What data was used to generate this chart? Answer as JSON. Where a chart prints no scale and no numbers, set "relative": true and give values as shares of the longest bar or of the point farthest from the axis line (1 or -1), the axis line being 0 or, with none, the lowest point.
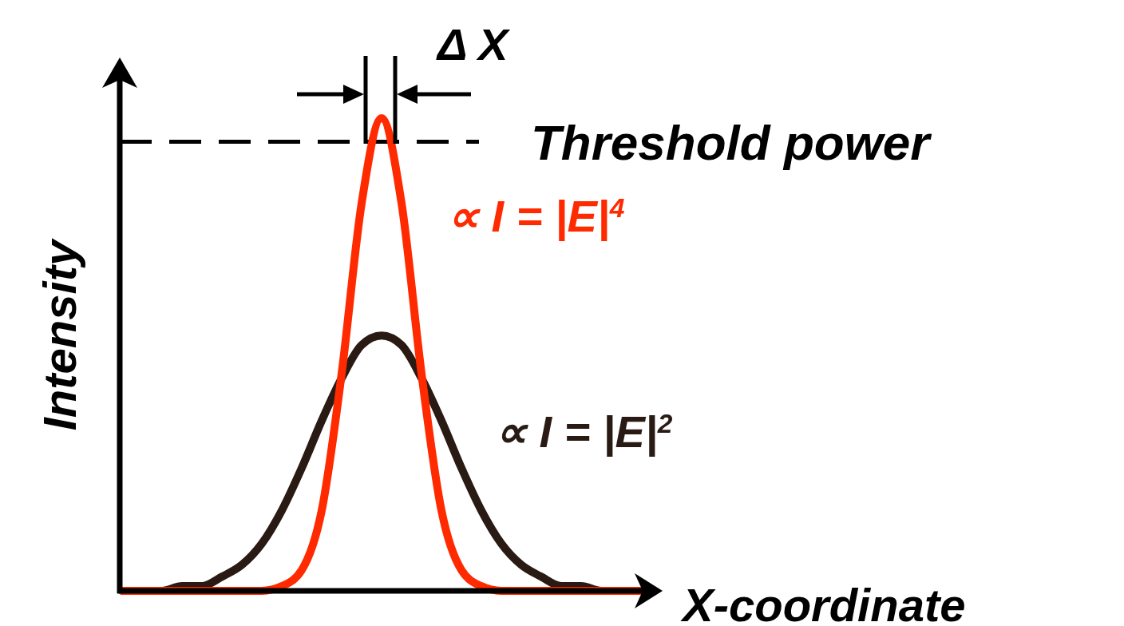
{
  "chart_data": {
    "type": "line",
    "relative": true,
    "xlabel": "X-coordinate",
    "ylabel": "Intensity",
    "categories": [
      null,
      null,
      null,
      null,
      null,
      null,
      null,
      null,
      null,
      null,
      null,
      null,
      null,
      null,
      null,
      null,
      null,
      null,
      null,
      null,
      null,
      null,
      null,
      null,
      null,
      null,
      null
    ],
    "series": [
      {
        "name": "∝ I = |E|$^{2}$",
        "color": "#2a1a14",
        "values": [
          0,
          0,
          0,
          0.01,
          0.01,
          0.03,
          0.055,
          0.1,
          0.17,
          0.26,
          0.36,
          0.45,
          0.52,
          0.54,
          0.52,
          0.45,
          0.36,
          0.26,
          0.17,
          0.1,
          0.055,
          0.03,
          0.01,
          0.01,
          0,
          0,
          0
        ]
      },
      {
        "name": "∝ I = |E|$^{4}$",
        "color": "#ff2a00",
        "values": [
          0,
          0,
          0,
          0,
          0,
          0,
          0,
          0,
          0.01,
          0.044,
          0.17,
          0.46,
          0.82,
          1,
          0.82,
          0.46,
          0.17,
          0.044,
          0.01,
          0,
          0,
          0,
          0,
          0,
          0,
          0,
          0
        ]
      }
    ],
    "ref_lines": [
      {
        "axis": "y",
        "value": 0.95,
        "label": "Threshold power",
        "color": "#000000",
        "line_style": "dashed"
      }
    ],
    "annotations": [
      "Δ X"
    ],
    "line_style": "solid"
  }
}
